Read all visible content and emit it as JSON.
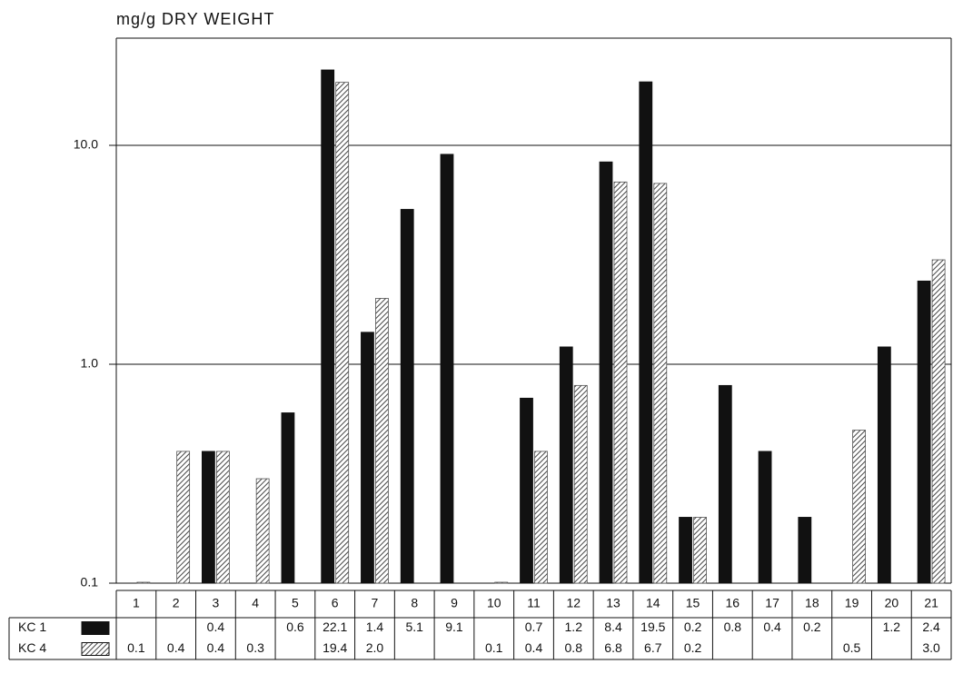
{
  "chart_data": {
    "type": "bar",
    "title": "mg/g DRY WEIGHT",
    "categories": [
      "1",
      "2",
      "3",
      "4",
      "5",
      "6",
      "7",
      "8",
      "9",
      "10",
      "11",
      "12",
      "13",
      "14",
      "15",
      "16",
      "17",
      "18",
      "19",
      "20",
      "21"
    ],
    "series": [
      {
        "name": "KC 1",
        "color": "#111111",
        "hatch": false,
        "values": [
          null,
          null,
          0.4,
          null,
          0.6,
          22.1,
          1.4,
          5.1,
          9.1,
          null,
          0.7,
          1.2,
          8.4,
          19.5,
          0.2,
          0.8,
          0.4,
          0.2,
          null,
          1.2,
          2.4
        ],
        "value_labels": [
          null,
          null,
          "0.4",
          null,
          "0.6",
          "22.1",
          "1.4",
          "5.1",
          "9.1",
          null,
          "0.7",
          "1.2",
          "8.4",
          "19.5",
          "0.2",
          "0.8",
          "0.4",
          "0.2",
          null,
          "1.2",
          "2.4"
        ]
      },
      {
        "name": "KC 4",
        "color": "#444444",
        "hatch": true,
        "values": [
          0.1,
          0.4,
          0.4,
          0.3,
          null,
          19.4,
          2.0,
          null,
          null,
          0.1,
          0.4,
          0.8,
          6.8,
          6.7,
          0.2,
          null,
          null,
          null,
          0.5,
          null,
          3.0
        ],
        "value_labels": [
          "0.1",
          "0.4",
          "0.4",
          "0.3",
          null,
          "19.4",
          "2.0",
          null,
          null,
          "0.1",
          "0.4",
          "0.8",
          "6.8",
          "6.7",
          "0.2",
          null,
          null,
          null,
          "0.5",
          null,
          "3.0"
        ]
      }
    ],
    "log_scale": true,
    "ylim": [
      0.1,
      30
    ],
    "yticks": [
      0.1,
      {
        "value": 1,
        "label": "1.0"
      },
      {
        "value": 10,
        "label": "10.0"
      }
    ],
    "grid": true
  }
}
